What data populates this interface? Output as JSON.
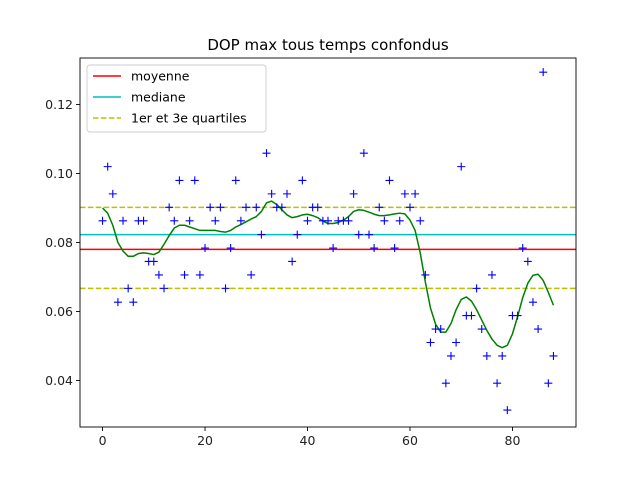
{
  "chart_data": {
    "type": "scatter",
    "title": "DOP max tous temps confondus",
    "xlabel": "",
    "ylabel": "",
    "xlim": [
      -4.4,
      92.4
    ],
    "ylim": [
      0.0265,
      0.1335
    ],
    "xticks": [
      0,
      20,
      40,
      60,
      80
    ],
    "yticks": [
      0.04,
      0.06,
      0.08,
      0.1,
      0.12
    ],
    "ytick_labels": [
      "0.04",
      "0.06",
      "0.08",
      "0.10",
      "0.12"
    ],
    "grid": false,
    "legend_position": "top-left",
    "legend": [
      "moyenne",
      "mediane",
      "1er et 3e quartiles"
    ],
    "colors": {
      "points": "#0000ff",
      "mean": "#ff0000",
      "median": "#00bfbf",
      "quartiles": "#bfbf00",
      "smooth": "#008000"
    },
    "mean": 0.078,
    "median": 0.0823,
    "quartiles": [
      0.0667,
      0.0902
    ],
    "points": [
      [
        0,
        0.0863
      ],
      [
        1,
        0.102
      ],
      [
        2,
        0.0941
      ],
      [
        3,
        0.0627
      ],
      [
        4,
        0.0863
      ],
      [
        5,
        0.0667
      ],
      [
        6,
        0.0627
      ],
      [
        7,
        0.0863
      ],
      [
        8,
        0.0863
      ],
      [
        9,
        0.0745
      ],
      [
        10,
        0.0745
      ],
      [
        11,
        0.0706
      ],
      [
        12,
        0.0667
      ],
      [
        13,
        0.0902
      ],
      [
        14,
        0.0863
      ],
      [
        15,
        0.098
      ],
      [
        16,
        0.0706
      ],
      [
        17,
        0.0863
      ],
      [
        18,
        0.098
      ],
      [
        19,
        0.0706
      ],
      [
        20,
        0.0784
      ],
      [
        21,
        0.0902
      ],
      [
        22,
        0.0863
      ],
      [
        23,
        0.0902
      ],
      [
        24,
        0.0667
      ],
      [
        25,
        0.0784
      ],
      [
        26,
        0.098
      ],
      [
        27,
        0.0863
      ],
      [
        28,
        0.0902
      ],
      [
        29,
        0.0706
      ],
      [
        30,
        0.0902
      ],
      [
        31,
        0.0823
      ],
      [
        32,
        0.1059
      ],
      [
        33,
        0.0941
      ],
      [
        34,
        0.0902
      ],
      [
        35,
        0.0902
      ],
      [
        36,
        0.0941
      ],
      [
        37,
        0.0745
      ],
      [
        38,
        0.0823
      ],
      [
        39,
        0.098
      ],
      [
        40,
        0.0863
      ],
      [
        41,
        0.0902
      ],
      [
        42,
        0.0902
      ],
      [
        43,
        0.0863
      ],
      [
        44,
        0.0863
      ],
      [
        45,
        0.0784
      ],
      [
        46,
        0.0863
      ],
      [
        47,
        0.0863
      ],
      [
        48,
        0.0863
      ],
      [
        49,
        0.0941
      ],
      [
        50,
        0.0823
      ],
      [
        51,
        0.1059
      ],
      [
        52,
        0.0823
      ],
      [
        53,
        0.0784
      ],
      [
        54,
        0.0902
      ],
      [
        55,
        0.0863
      ],
      [
        56,
        0.098
      ],
      [
        57,
        0.0784
      ],
      [
        58,
        0.0863
      ],
      [
        59,
        0.0941
      ],
      [
        60,
        0.0902
      ],
      [
        61,
        0.0941
      ],
      [
        62,
        0.0863
      ],
      [
        63,
        0.0706
      ],
      [
        64,
        0.051
      ],
      [
        65,
        0.0549
      ],
      [
        66,
        0.0549
      ],
      [
        67,
        0.0392
      ],
      [
        68,
        0.0471
      ],
      [
        69,
        0.051
      ],
      [
        70,
        0.102
      ],
      [
        71,
        0.0588
      ],
      [
        72,
        0.0588
      ],
      [
        73,
        0.0667
      ],
      [
        74,
        0.0549
      ],
      [
        75,
        0.0471
      ],
      [
        76,
        0.0706
      ],
      [
        77,
        0.0392
      ],
      [
        78,
        0.0471
      ],
      [
        79,
        0.0314
      ],
      [
        80,
        0.0588
      ],
      [
        81,
        0.0588
      ],
      [
        82,
        0.0784
      ],
      [
        83,
        0.0745
      ],
      [
        84,
        0.0627
      ],
      [
        85,
        0.0549
      ],
      [
        86,
        0.1294
      ],
      [
        87,
        0.0392
      ],
      [
        88,
        0.0471
      ]
    ],
    "smooth_curve": [
      [
        0,
        0.09
      ],
      [
        1,
        0.0885
      ],
      [
        2,
        0.085
      ],
      [
        3,
        0.08
      ],
      [
        4,
        0.0775
      ],
      [
        5,
        0.076
      ],
      [
        6,
        0.076
      ],
      [
        7,
        0.0768
      ],
      [
        8,
        0.077
      ],
      [
        9,
        0.0768
      ],
      [
        10,
        0.0765
      ],
      [
        11,
        0.0772
      ],
      [
        12,
        0.0795
      ],
      [
        13,
        0.082
      ],
      [
        14,
        0.0842
      ],
      [
        15,
        0.085
      ],
      [
        16,
        0.085
      ],
      [
        17,
        0.0845
      ],
      [
        18,
        0.084
      ],
      [
        19,
        0.0835
      ],
      [
        20,
        0.0835
      ],
      [
        21,
        0.0835
      ],
      [
        22,
        0.0835
      ],
      [
        23,
        0.0832
      ],
      [
        24,
        0.083
      ],
      [
        25,
        0.0835
      ],
      [
        26,
        0.0845
      ],
      [
        27,
        0.0852
      ],
      [
        28,
        0.086
      ],
      [
        29,
        0.0868
      ],
      [
        30,
        0.0875
      ],
      [
        31,
        0.089
      ],
      [
        32,
        0.0915
      ],
      [
        33,
        0.092
      ],
      [
        34,
        0.091
      ],
      [
        35,
        0.0895
      ],
      [
        36,
        0.088
      ],
      [
        37,
        0.0872
      ],
      [
        38,
        0.0875
      ],
      [
        39,
        0.088
      ],
      [
        40,
        0.0882
      ],
      [
        41,
        0.0878
      ],
      [
        42,
        0.0872
      ],
      [
        43,
        0.0862
      ],
      [
        44,
        0.0855
      ],
      [
        45,
        0.0855
      ],
      [
        46,
        0.0858
      ],
      [
        47,
        0.0865
      ],
      [
        48,
        0.0875
      ],
      [
        49,
        0.089
      ],
      [
        50,
        0.0895
      ],
      [
        51,
        0.0893
      ],
      [
        52,
        0.0888
      ],
      [
        53,
        0.0882
      ],
      [
        54,
        0.0878
      ],
      [
        55,
        0.0878
      ],
      [
        56,
        0.088
      ],
      [
        57,
        0.0883
      ],
      [
        58,
        0.0885
      ],
      [
        59,
        0.0883
      ],
      [
        60,
        0.0865
      ],
      [
        61,
        0.0835
      ],
      [
        62,
        0.077
      ],
      [
        63,
        0.0685
      ],
      [
        64,
        0.061
      ],
      [
        65,
        0.0563
      ],
      [
        66,
        0.054
      ],
      [
        67,
        0.054
      ],
      [
        68,
        0.0565
      ],
      [
        69,
        0.0605
      ],
      [
        70,
        0.0635
      ],
      [
        71,
        0.0642
      ],
      [
        72,
        0.063
      ],
      [
        73,
        0.0605
      ],
      [
        74,
        0.0575
      ],
      [
        75,
        0.0545
      ],
      [
        76,
        0.052
      ],
      [
        77,
        0.0502
      ],
      [
        78,
        0.0495
      ],
      [
        79,
        0.0502
      ],
      [
        80,
        0.0535
      ],
      [
        81,
        0.0585
      ],
      [
        82,
        0.064
      ],
      [
        83,
        0.0682
      ],
      [
        84,
        0.0705
      ],
      [
        85,
        0.0708
      ],
      [
        86,
        0.069
      ],
      [
        87,
        0.0655
      ],
      [
        88,
        0.0618
      ]
    ]
  }
}
